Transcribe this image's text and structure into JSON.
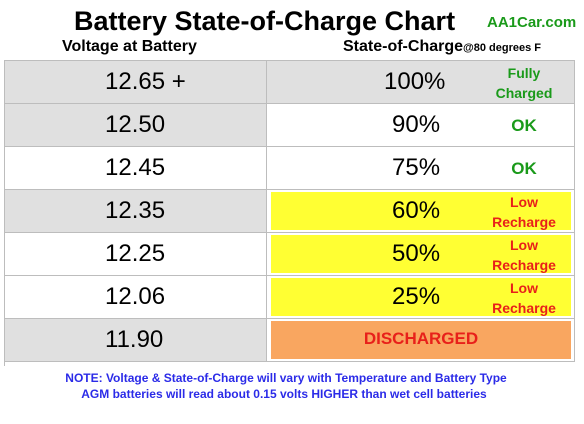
{
  "title": "Battery State-of-Charge Chart",
  "brand": "AA1Car.com",
  "headers": {
    "voltage": "Voltage at Battery",
    "soc": "State-of-Charge",
    "condition": "@80 degrees F"
  },
  "rows": [
    {
      "voltage": "12.65 +",
      "percent": "100%",
      "status_line1": "Fully",
      "status_line2": "Charged"
    },
    {
      "voltage": "12.50",
      "percent": "90%",
      "status_line1": "OK",
      "status_line2": ""
    },
    {
      "voltage": "12.45",
      "percent": "75%",
      "status_line1": "OK",
      "status_line2": ""
    },
    {
      "voltage": "12.35",
      "percent": "60%",
      "status_line1": "Low",
      "status_line2": "Recharge"
    },
    {
      "voltage": "12.25",
      "percent": "50%",
      "status_line1": "Low",
      "status_line2": "Recharge"
    },
    {
      "voltage": "12.06",
      "percent": "25%",
      "status_line1": "Low",
      "status_line2": "Recharge"
    },
    {
      "voltage": "11.90",
      "percent": "",
      "status_line1": "DISCHARGED",
      "status_line2": ""
    }
  ],
  "notes": [
    "NOTE:  Voltage & State-of-Charge will vary with Temperature and Battery Type",
    "AGM batteries will read about 0.15 volts HIGHER than wet cell batteries"
  ],
  "colors": {
    "row_gray": "#e0e0e0",
    "row_white": "#ffffff",
    "yellow": "#ffff33",
    "orange": "#f9a660",
    "green": "#1a9a1a",
    "red": "#e8201a",
    "note_blue": "#2b2be8"
  }
}
